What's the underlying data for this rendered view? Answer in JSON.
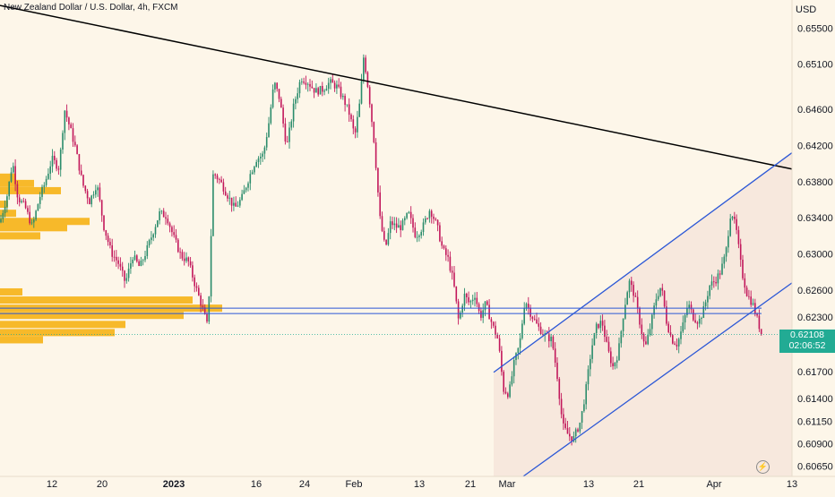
{
  "title": "New Zealand Dollar / U.S. Dollar, 4h, FXCM",
  "currency_label": "USD",
  "last_price": "0.62108",
  "countdown": "02:06:52",
  "colors": {
    "background": "#fdf6e9",
    "bull": "#2a8c6b",
    "bear": "#c2185b",
    "trendline": "#000000",
    "channel": "#2b57d6",
    "volume_profile": "#f7b92a",
    "channel_fill": "#f3e3d7",
    "price_tag": "#22ab94"
  },
  "icons": {
    "alert": "lightning-alert-icon"
  },
  "chart_data": {
    "type": "candlestick",
    "title": "New Zealand Dollar / U.S. Dollar, 4h, FXCM",
    "ylabel": "USD",
    "ylim": [
      0.6036,
      0.6581
    ],
    "yticks": [
      "0.65500",
      "0.65100",
      "0.64600",
      "0.64200",
      "0.63800",
      "0.63400",
      "0.63000",
      "0.62600",
      "0.62300",
      "0.61700",
      "0.61400",
      "0.61150",
      "0.60900",
      "0.60650"
    ],
    "xticks": [
      {
        "label": "12",
        "bold": false
      },
      {
        "label": "20",
        "bold": false
      },
      {
        "label": "2023",
        "bold": true
      },
      {
        "label": "16",
        "bold": false
      },
      {
        "label": "24",
        "bold": false
      },
      {
        "label": "Feb",
        "bold": false
      },
      {
        "label": "13",
        "bold": false
      },
      {
        "label": "21",
        "bold": false
      },
      {
        "label": "Mar",
        "bold": false
      },
      {
        "label": "13",
        "bold": false
      },
      {
        "label": "21",
        "bold": false
      },
      {
        "label": "Apr",
        "bold": false
      },
      {
        "label": "13",
        "bold": false
      }
    ],
    "price_path": [
      [
        0,
        0.6335
      ],
      [
        8,
        0.6365
      ],
      [
        14,
        0.6402
      ],
      [
        20,
        0.6362
      ],
      [
        28,
        0.6352
      ],
      [
        36,
        0.633
      ],
      [
        44,
        0.6362
      ],
      [
        50,
        0.6378
      ],
      [
        58,
        0.6405
      ],
      [
        66,
        0.6395
      ],
      [
        72,
        0.646
      ],
      [
        78,
        0.644
      ],
      [
        84,
        0.6418
      ],
      [
        92,
        0.6378
      ],
      [
        100,
        0.6358
      ],
      [
        108,
        0.6378
      ],
      [
        116,
        0.633
      ],
      [
        124,
        0.6302
      ],
      [
        132,
        0.629
      ],
      [
        140,
        0.6268
      ],
      [
        148,
        0.6298
      ],
      [
        156,
        0.6285
      ],
      [
        164,
        0.6305
      ],
      [
        170,
        0.6322
      ],
      [
        178,
        0.6345
      ],
      [
        186,
        0.6342
      ],
      [
        194,
        0.6318
      ],
      [
        202,
        0.6298
      ],
      [
        210,
        0.6292
      ],
      [
        218,
        0.6265
      ],
      [
        226,
        0.624
      ],
      [
        232,
        0.6218
      ],
      [
        238,
        0.639
      ],
      [
        246,
        0.638
      ],
      [
        254,
        0.6365
      ],
      [
        262,
        0.635
      ],
      [
        270,
        0.6362
      ],
      [
        278,
        0.6385
      ],
      [
        286,
        0.6405
      ],
      [
        294,
        0.641
      ],
      [
        300,
        0.6445
      ],
      [
        306,
        0.649
      ],
      [
        312,
        0.6472
      ],
      [
        320,
        0.6418
      ],
      [
        328,
        0.6465
      ],
      [
        336,
        0.6495
      ],
      [
        344,
        0.649
      ],
      [
        352,
        0.648
      ],
      [
        360,
        0.6482
      ],
      [
        368,
        0.649
      ],
      [
        376,
        0.6485
      ],
      [
        384,
        0.647
      ],
      [
        390,
        0.6455
      ],
      [
        396,
        0.643
      ],
      [
        402,
        0.647
      ],
      [
        406,
        0.652
      ],
      [
        412,
        0.6475
      ],
      [
        418,
        0.642
      ],
      [
        424,
        0.634
      ],
      [
        430,
        0.6305
      ],
      [
        436,
        0.6335
      ],
      [
        442,
        0.633
      ],
      [
        448,
        0.633
      ],
      [
        456,
        0.6345
      ],
      [
        464,
        0.632
      ],
      [
        472,
        0.633
      ],
      [
        480,
        0.635
      ],
      [
        488,
        0.633
      ],
      [
        494,
        0.6305
      ],
      [
        500,
        0.6295
      ],
      [
        506,
        0.627
      ],
      [
        512,
        0.6225
      ],
      [
        518,
        0.6255
      ],
      [
        524,
        0.6245
      ],
      [
        530,
        0.6255
      ],
      [
        536,
        0.623
      ],
      [
        542,
        0.6245
      ],
      [
        550,
        0.622
      ],
      [
        556,
        0.6205
      ],
      [
        562,
        0.615
      ],
      [
        568,
        0.6145
      ],
      [
        574,
        0.618
      ],
      [
        580,
        0.62
      ],
      [
        586,
        0.625
      ],
      [
        592,
        0.6235
      ],
      [
        600,
        0.622
      ],
      [
        608,
        0.621
      ],
      [
        616,
        0.6205
      ],
      [
        622,
        0.6165
      ],
      [
        628,
        0.611
      ],
      [
        634,
        0.61
      ],
      [
        640,
        0.6095
      ],
      [
        648,
        0.6115
      ],
      [
        654,
        0.615
      ],
      [
        660,
        0.6195
      ],
      [
        666,
        0.622
      ],
      [
        672,
        0.6225
      ],
      [
        678,
        0.6195
      ],
      [
        684,
        0.6175
      ],
      [
        690,
        0.619
      ],
      [
        696,
        0.6235
      ],
      [
        702,
        0.627
      ],
      [
        708,
        0.6255
      ],
      [
        714,
        0.6225
      ],
      [
        720,
        0.6195
      ],
      [
        726,
        0.622
      ],
      [
        732,
        0.625
      ],
      [
        738,
        0.6265
      ],
      [
        744,
        0.6225
      ],
      [
        750,
        0.6205
      ],
      [
        756,
        0.62
      ],
      [
        762,
        0.622
      ],
      [
        768,
        0.6245
      ],
      [
        774,
        0.623
      ],
      [
        780,
        0.6225
      ],
      [
        786,
        0.624
      ],
      [
        792,
        0.6265
      ],
      [
        798,
        0.627
      ],
      [
        804,
        0.628
      ],
      [
        810,
        0.63
      ],
      [
        816,
        0.635
      ],
      [
        822,
        0.6325
      ],
      [
        828,
        0.628
      ],
      [
        834,
        0.6255
      ],
      [
        840,
        0.6245
      ],
      [
        846,
        0.6225
      ],
      [
        850,
        0.6211
      ]
    ],
    "trendline": [
      [
        0,
        0.6575
      ],
      [
        884,
        0.6394
      ]
    ],
    "channel_upper": [
      [
        551,
        0.6169
      ],
      [
        884,
        0.6412
      ]
    ],
    "channel_lower": [
      [
        580,
        0.6051
      ],
      [
        884,
        0.6268
      ]
    ],
    "horizontal_levels": [
      0.624,
      0.6234
    ],
    "volume_profile": [
      {
        "price": 0.6385,
        "length": 18
      },
      {
        "price": 0.6378,
        "length": 38
      },
      {
        "price": 0.637,
        "length": 68
      },
      {
        "price": 0.6355,
        "length": 9
      },
      {
        "price": 0.6345,
        "length": 18
      },
      {
        "price": 0.6336,
        "length": 100
      },
      {
        "price": 0.6329,
        "length": 75
      },
      {
        "price": 0.632,
        "length": 45
      },
      {
        "price": 0.6258,
        "length": 25
      },
      {
        "price": 0.6249,
        "length": 215
      },
      {
        "price": 0.624,
        "length": 248
      },
      {
        "price": 0.6232,
        "length": 205
      },
      {
        "price": 0.6222,
        "length": 140
      },
      {
        "price": 0.6213,
        "length": 128
      },
      {
        "price": 0.6205,
        "length": 48
      }
    ]
  }
}
